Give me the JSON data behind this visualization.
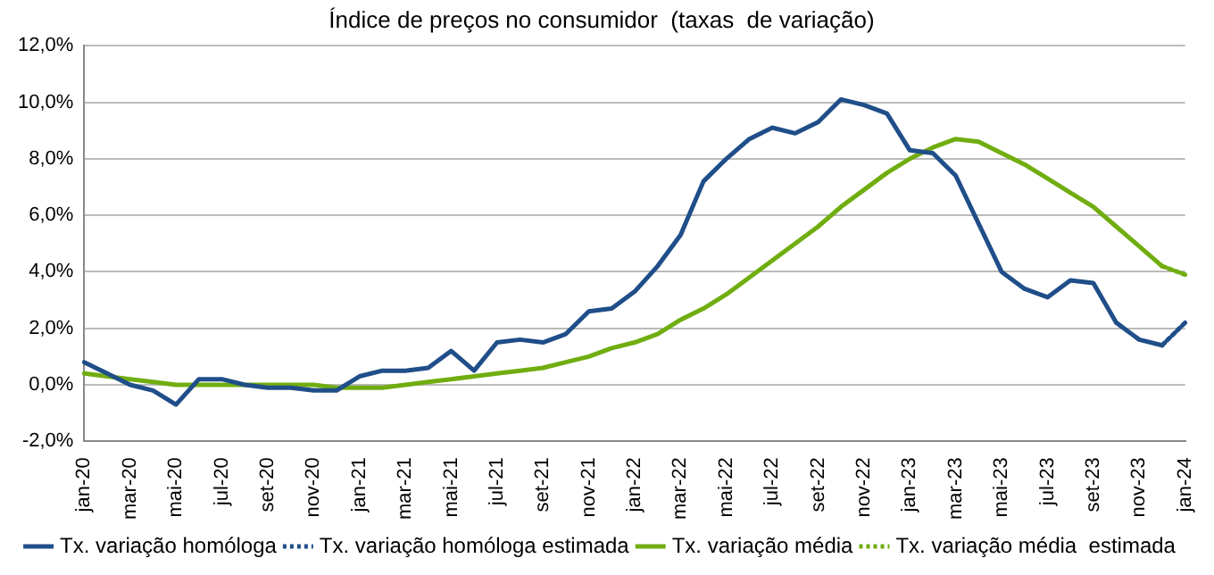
{
  "chart_data": {
    "type": "line",
    "title": "Índice de preços no consumidor  (taxas  de variação)",
    "categories": [
      "jan-20",
      null,
      "mar-20",
      null,
      "mai-20",
      null,
      "jul-20",
      null,
      "set-20",
      null,
      "nov-20",
      null,
      "jan-21",
      null,
      "mar-21",
      null,
      "mai-21",
      null,
      "jul-21",
      null,
      "set-21",
      null,
      "nov-21",
      null,
      "jan-22",
      null,
      "mar-22",
      null,
      "mai-22",
      null,
      "jul-22",
      null,
      "set-22",
      null,
      "nov-22",
      null,
      "jan-23",
      null,
      "mar-23",
      null,
      "mai-23",
      null,
      "jul-23",
      null,
      "set-23",
      null,
      "nov-23",
      null,
      "jan-24"
    ],
    "series": [
      {
        "name": "Tx. variação homóloga",
        "color": "#1f4e89",
        "line_style": "solid",
        "values": [
          0.8,
          0.4,
          0.0,
          -0.2,
          -0.7,
          0.2,
          0.2,
          0.0,
          -0.1,
          -0.1,
          -0.2,
          -0.2,
          0.3,
          0.5,
          0.5,
          0.6,
          1.2,
          0.5,
          1.5,
          1.6,
          1.5,
          1.8,
          2.6,
          2.7,
          3.3,
          4.2,
          5.3,
          7.2,
          8.0,
          8.7,
          9.1,
          8.9,
          9.3,
          10.1,
          9.9,
          9.6,
          8.3,
          8.2,
          7.4,
          5.7,
          4.0,
          3.4,
          3.1,
          3.7,
          3.6,
          2.2,
          1.6,
          1.4,
          null
        ]
      },
      {
        "name": "Tx. variação homóloga estimada",
        "color": "#1f4e89",
        "line_style": "dotted",
        "values": [
          null,
          null,
          null,
          null,
          null,
          null,
          null,
          null,
          null,
          null,
          null,
          null,
          null,
          null,
          null,
          null,
          null,
          null,
          null,
          null,
          null,
          null,
          null,
          null,
          null,
          null,
          null,
          null,
          null,
          null,
          null,
          null,
          null,
          null,
          null,
          null,
          null,
          null,
          null,
          null,
          null,
          null,
          null,
          null,
          null,
          null,
          null,
          1.4,
          2.2
        ]
      },
      {
        "name": "Tx. variação média",
        "color": "#70ad10",
        "line_style": "solid",
        "values": [
          0.4,
          0.3,
          0.2,
          0.1,
          0.0,
          0.0,
          0.0,
          0.0,
          0.0,
          0.0,
          0.0,
          -0.1,
          -0.1,
          -0.1,
          0.0,
          0.1,
          0.2,
          0.3,
          0.4,
          0.5,
          0.6,
          0.8,
          1.0,
          1.3,
          1.5,
          1.8,
          2.3,
          2.7,
          3.2,
          3.8,
          4.4,
          5.0,
          5.6,
          6.3,
          6.9,
          7.5,
          8.0,
          8.4,
          8.7,
          8.6,
          8.2,
          7.8,
          7.3,
          6.8,
          6.3,
          5.6,
          4.9,
          4.2,
          null
        ]
      },
      {
        "name": "Tx. variação média  estimada",
        "color": "#70ad10",
        "line_style": "dotted",
        "values": [
          null,
          null,
          null,
          null,
          null,
          null,
          null,
          null,
          null,
          null,
          null,
          null,
          null,
          null,
          null,
          null,
          null,
          null,
          null,
          null,
          null,
          null,
          null,
          null,
          null,
          null,
          null,
          null,
          null,
          null,
          null,
          null,
          null,
          null,
          null,
          null,
          null,
          null,
          null,
          null,
          null,
          null,
          null,
          null,
          null,
          null,
          null,
          4.2,
          3.9
        ]
      }
    ],
    "ylim": [
      -2,
      12
    ],
    "yticks": [
      {
        "value": -2,
        "label": "-2,0%"
      },
      {
        "value": 0,
        "label": "0,0%"
      },
      {
        "value": 2,
        "label": "2,0%"
      },
      {
        "value": 4,
        "label": "4,0%"
      },
      {
        "value": 6,
        "label": "6,0%"
      },
      {
        "value": 8,
        "label": "8,0%"
      },
      {
        "value": 10,
        "label": "10,0%"
      },
      {
        "value": 12,
        "label": "12,0%"
      }
    ],
    "grid": "y",
    "legend": "bottom",
    "marker": "none"
  }
}
